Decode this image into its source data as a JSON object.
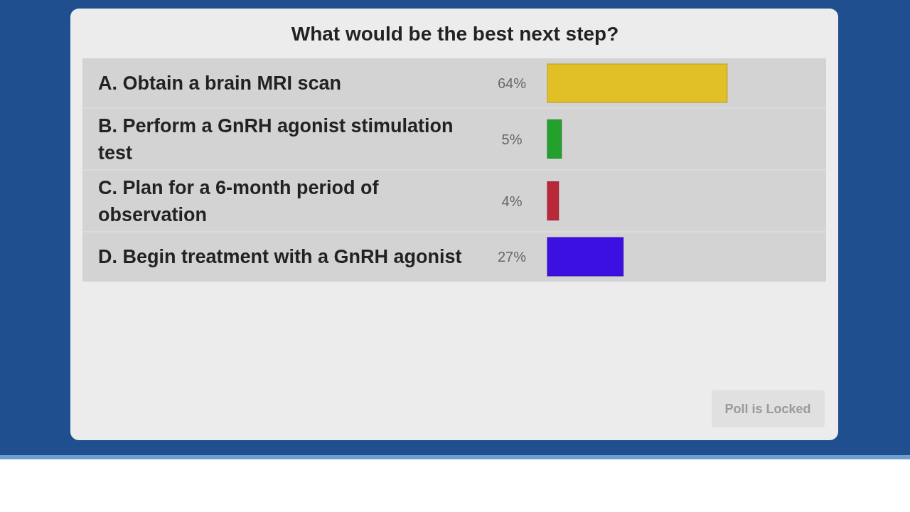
{
  "chart_data": {
    "type": "bar",
    "orientation": "horizontal",
    "title": "What would be the best next step?",
    "categories": [
      "A. Obtain a brain MRI scan",
      "B. Perform a GnRH agonist stimulation test",
      "C. Plan for a 6-month period of observation",
      "D. Begin treatment with a GnRH agonist"
    ],
    "values": [
      64,
      5,
      4,
      27
    ],
    "colors": [
      "#e0c024",
      "#24a02c",
      "#b82838",
      "#3c10e0"
    ],
    "value_labels": [
      "64%",
      "5%",
      "4%",
      "27%"
    ],
    "xlim": [
      0,
      100
    ],
    "annotations": [
      "Poll is Locked"
    ]
  }
}
